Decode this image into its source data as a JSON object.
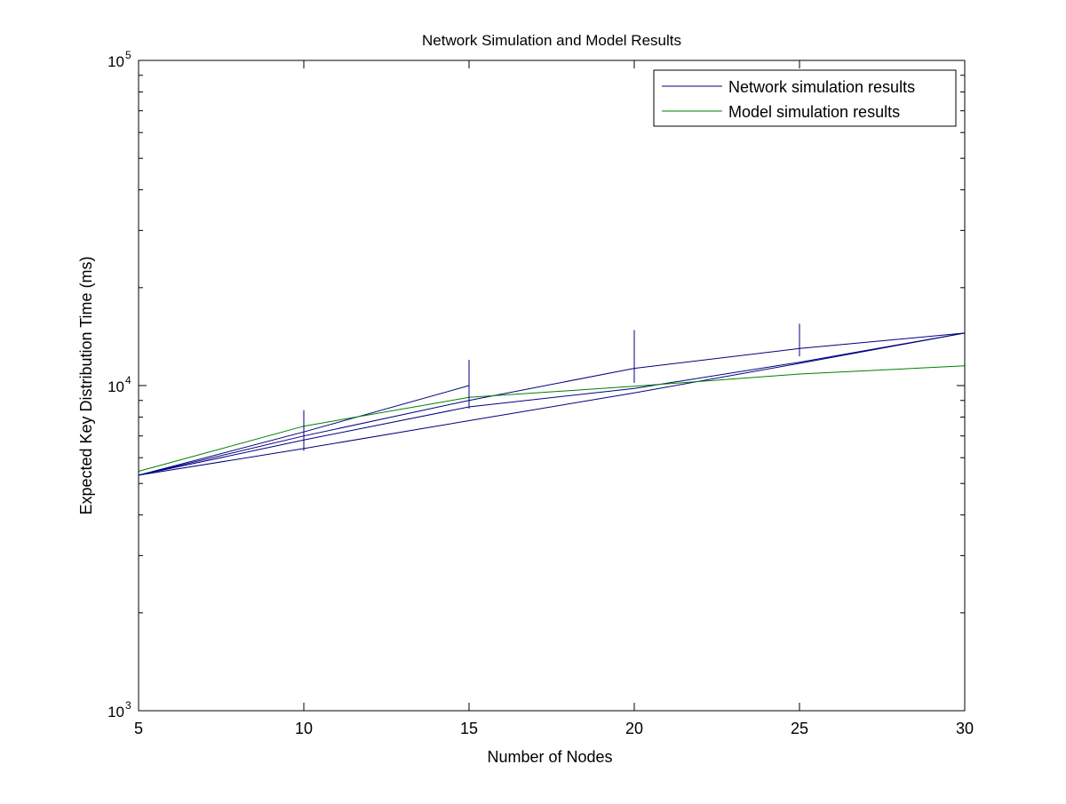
{
  "chart_data": {
    "type": "line",
    "title": "Network Simulation and Model Results",
    "xlabel": "Number of Nodes",
    "ylabel": "Expected Key Distribution Time (ms)",
    "xlim": [
      5,
      30
    ],
    "ylim": [
      1000,
      100000
    ],
    "yscale": "log",
    "x_ticks": [
      5,
      10,
      15,
      20,
      25,
      30
    ],
    "x_tick_labels": [
      "5",
      "10",
      "15",
      "20",
      "25",
      "30"
    ],
    "y_ticks": [
      1000,
      10000,
      100000
    ],
    "y_tick_labels": [
      {
        "base": "10",
        "exp": "3"
      },
      {
        "base": "10",
        "exp": "4"
      },
      {
        "base": "10",
        "exp": "5"
      }
    ],
    "grid": false,
    "legend_position": "top-right",
    "legend": [
      {
        "label": "Network simulation results",
        "color": "#00007f"
      },
      {
        "label": "Model simulation results",
        "color": "#007f00"
      }
    ],
    "series": [
      {
        "group": "network",
        "color": "#00007f",
        "x": [
          5,
          10,
          15
        ],
        "y": [
          5300,
          7200,
          10000
        ]
      },
      {
        "group": "network",
        "color": "#00007f",
        "x": [
          5,
          10,
          15,
          20,
          25,
          30
        ],
        "y": [
          5300,
          7000,
          9000,
          11300,
          13000,
          14500
        ]
      },
      {
        "group": "network",
        "color": "#00007f",
        "x": [
          5,
          10,
          15,
          20,
          25,
          30
        ],
        "y": [
          5300,
          6800,
          8600,
          9800,
          11800,
          14500
        ]
      },
      {
        "group": "network",
        "color": "#00007f",
        "x": [
          5,
          10,
          15,
          20,
          25,
          30
        ],
        "y": [
          5300,
          6400,
          7800,
          9500,
          11700,
          14500
        ]
      },
      {
        "group": "model",
        "color": "#007f00",
        "x": [
          5,
          10,
          15,
          20,
          25,
          30
        ],
        "y": [
          5450,
          7500,
          9200,
          9950,
          10850,
          11500
        ]
      }
    ],
    "error_bars": [
      {
        "x": 10,
        "low": 6300,
        "high": 8400
      },
      {
        "x": 15,
        "low": 8500,
        "high": 12000
      },
      {
        "x": 20,
        "low": 10200,
        "high": 14800
      },
      {
        "x": 25,
        "low": 12300,
        "high": 15500
      }
    ]
  }
}
